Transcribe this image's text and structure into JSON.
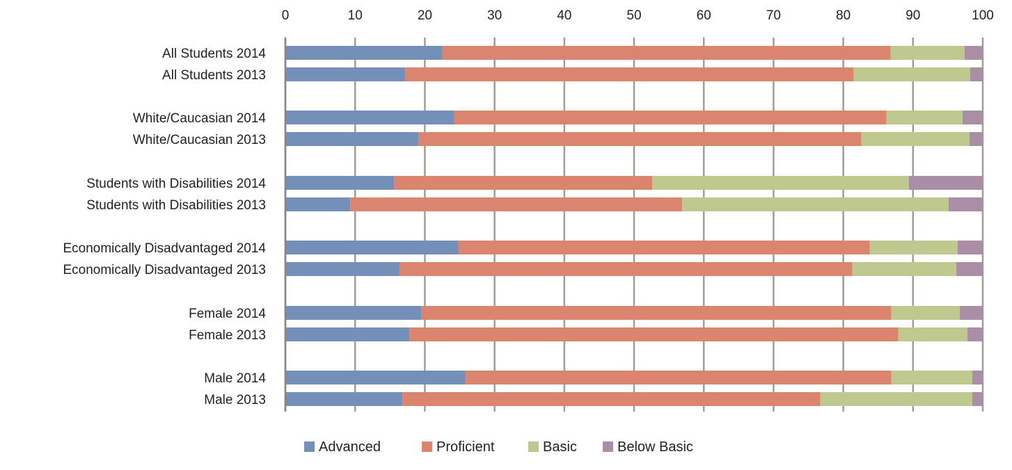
{
  "chart_data": {
    "type": "bar",
    "orientation": "horizontal",
    "stacked": true,
    "title": "",
    "xlabel": "",
    "ylabel": "",
    "xlim": [
      0,
      100
    ],
    "x_ticks": [
      0,
      10,
      20,
      30,
      40,
      50,
      60,
      70,
      80,
      90,
      100
    ],
    "x_axis_position": "top",
    "grid": true,
    "legend_position": "bottom",
    "categories": [
      "All Students 2014",
      "All Students 2013",
      "White/Caucasian 2014",
      "White/Caucasian 2013",
      "Students with  Disabilities 2014",
      "Students with  Disabilities 2013",
      "Economically Disadvantaged  2014",
      "Economically Disadvantaged  2013",
      "Female 2014",
      "Female 2013",
      "Male 2014",
      "Male 2013"
    ],
    "series": [
      {
        "name": "Advanced",
        "color": "#7490B8",
        "values": [
          22.5,
          17.2,
          24.2,
          19.1,
          15.6,
          9.3,
          24.8,
          16.4,
          19.5,
          17.8,
          25.8,
          16.8
        ]
      },
      {
        "name": "Proficient",
        "color": "#DB8470",
        "values": [
          64.3,
          64.3,
          62.0,
          63.5,
          37.0,
          47.6,
          59.0,
          64.9,
          67.4,
          70.1,
          61.1,
          59.9
        ]
      },
      {
        "name": "Basic",
        "color": "#BFC88E",
        "values": [
          10.6,
          16.7,
          10.9,
          15.5,
          36.8,
          38.2,
          12.6,
          14.9,
          9.8,
          9.9,
          11.6,
          21.8
        ]
      },
      {
        "name": "Below Basic",
        "color": "#AA8EA6",
        "values": [
          2.6,
          1.8,
          2.9,
          1.9,
          10.6,
          4.9,
          3.6,
          3.8,
          3.3,
          2.2,
          1.5,
          1.5
        ]
      }
    ]
  }
}
